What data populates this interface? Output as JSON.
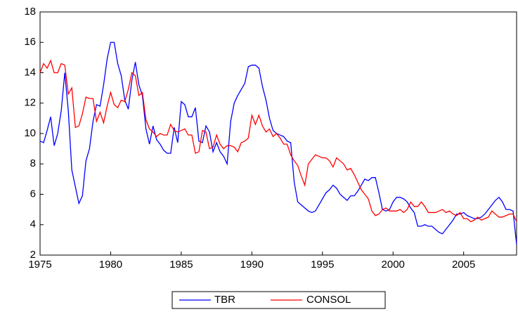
{
  "chart_data": {
    "type": "line",
    "x": [
      1975,
      1975.25,
      1975.5,
      1975.75,
      1976,
      1976.25,
      1976.5,
      1976.75,
      1977,
      1977.25,
      1977.5,
      1977.75,
      1978,
      1978.25,
      1978.5,
      1978.75,
      1979,
      1979.25,
      1979.5,
      1979.75,
      1980,
      1980.25,
      1980.5,
      1980.75,
      1981,
      1981.25,
      1981.5,
      1981.75,
      1982,
      1982.25,
      1982.5,
      1982.75,
      1983,
      1983.25,
      1983.5,
      1983.75,
      1984,
      1984.25,
      1984.5,
      1984.75,
      1985,
      1985.25,
      1985.5,
      1985.75,
      1986,
      1986.25,
      1986.5,
      1986.75,
      1987,
      1987.25,
      1987.5,
      1987.75,
      1988,
      1988.25,
      1988.5,
      1988.75,
      1989,
      1989.25,
      1989.5,
      1989.75,
      1990,
      1990.25,
      1990.5,
      1990.75,
      1991,
      1991.25,
      1991.5,
      1991.75,
      1992,
      1992.25,
      1992.5,
      1992.75,
      1993,
      1993.25,
      1993.5,
      1993.75,
      1994,
      1994.25,
      1994.5,
      1994.75,
      1995,
      1995.25,
      1995.5,
      1995.75,
      1996,
      1996.25,
      1996.5,
      1996.75,
      1997,
      1997.25,
      1997.5,
      1997.75,
      1998,
      1998.25,
      1998.5,
      1998.75,
      1999,
      1999.25,
      1999.5,
      1999.75,
      2000,
      2000.25,
      2000.5,
      2000.75,
      2001,
      2001.25,
      2001.5,
      2001.75,
      2002,
      2002.25,
      2002.5,
      2002.75,
      2003,
      2003.25,
      2003.5,
      2003.75,
      2004,
      2004.25,
      2004.5,
      2004.75,
      2005,
      2005.25,
      2005.5,
      2005.75,
      2006,
      2006.25,
      2006.5,
      2006.75,
      2007,
      2007.25,
      2007.5,
      2007.75,
      2008,
      2008.25,
      2008.5,
      2008.75
    ],
    "series": [
      {
        "name": "TBR",
        "color": "#0000ff",
        "values": [
          9.5,
          9.4,
          10.2,
          11.1,
          9.2,
          10.0,
          11.5,
          14.0,
          11.5,
          7.6,
          6.5,
          5.4,
          5.9,
          8.2,
          9.0,
          10.8,
          11.9,
          11.8,
          13.2,
          14.9,
          16.0,
          16.0,
          14.6,
          13.8,
          12.2,
          11.6,
          13.5,
          14.7,
          13.2,
          12.5,
          10.3,
          9.3,
          10.5,
          9.6,
          9.3,
          8.9,
          8.7,
          8.7,
          10.4,
          9.4,
          12.1,
          11.9,
          11.1,
          11.1,
          11.7,
          9.5,
          9.4,
          10.5,
          10.1,
          8.8,
          9.4,
          8.8,
          8.5,
          8.0,
          10.8,
          12.0,
          12.5,
          12.9,
          13.3,
          14.4,
          14.5,
          14.5,
          14.3,
          13.1,
          12.2,
          11.0,
          10.2,
          10.0,
          9.9,
          9.8,
          9.5,
          9.4,
          6.8,
          5.5,
          5.3,
          5.1,
          4.9,
          4.8,
          4.9,
          5.3,
          5.7,
          6.1,
          6.3,
          6.6,
          6.4,
          6.0,
          5.8,
          5.6,
          5.9,
          5.9,
          6.2,
          6.6,
          7.0,
          6.9,
          7.1,
          7.1,
          6.1,
          5.0,
          4.9,
          5.0,
          5.5,
          5.8,
          5.8,
          5.7,
          5.5,
          5.1,
          4.8,
          3.9,
          3.9,
          4.0,
          3.9,
          3.9,
          3.7,
          3.5,
          3.4,
          3.7,
          4.0,
          4.3,
          4.7,
          4.7,
          4.8,
          4.6,
          4.5,
          4.4,
          4.4,
          4.5,
          4.7,
          5.0,
          5.3,
          5.6,
          5.8,
          5.5,
          5.0,
          5.0,
          4.9,
          2.7
        ]
      },
      {
        "name": "CONSOL",
        "color": "#ff0000",
        "values": [
          14.0,
          14.6,
          14.3,
          14.8,
          14.0,
          14.0,
          14.6,
          14.5,
          12.6,
          13.0,
          10.4,
          10.5,
          11.3,
          12.4,
          12.3,
          12.3,
          10.8,
          11.4,
          10.7,
          11.8,
          12.7,
          11.9,
          11.7,
          12.2,
          12.1,
          12.9,
          14.0,
          13.8,
          12.5,
          12.7,
          10.9,
          10.3,
          10.1,
          9.8,
          10.0,
          9.9,
          9.9,
          10.6,
          10.2,
          10.1,
          10.2,
          10.3,
          9.9,
          9.9,
          8.7,
          8.8,
          10.2,
          10.1,
          9.0,
          9.1,
          9.9,
          9.3,
          9.0,
          9.2,
          9.2,
          9.1,
          8.8,
          9.4,
          9.5,
          9.7,
          11.2,
          10.6,
          11.2,
          10.5,
          10.1,
          10.3,
          9.8,
          10.0,
          9.7,
          9.3,
          9.3,
          8.6,
          8.2,
          7.9,
          7.2,
          6.6,
          8.0,
          8.3,
          8.6,
          8.5,
          8.4,
          8.4,
          8.2,
          7.8,
          8.4,
          8.2,
          8.0,
          7.6,
          7.7,
          7.3,
          6.8,
          6.3,
          6.0,
          5.7,
          4.9,
          4.6,
          4.7,
          5.0,
          5.1,
          4.9,
          4.9,
          4.9,
          5.0,
          4.8,
          5.0,
          5.5,
          5.2,
          5.2,
          5.5,
          5.2,
          4.8,
          4.8,
          4.8,
          4.9,
          5.0,
          4.8,
          4.9,
          4.7,
          4.6,
          4.8,
          4.4,
          4.4,
          4.2,
          4.3,
          4.5,
          4.3,
          4.4,
          4.5,
          4.9,
          4.7,
          4.5,
          4.5,
          4.6,
          4.7,
          4.7,
          4.2
        ]
      }
    ],
    "xlim": [
      1975,
      2008.75
    ],
    "xticks": [
      1975,
      1980,
      1985,
      1990,
      1995,
      2000,
      2005
    ],
    "ylim": [
      2,
      18
    ],
    "yticks": [
      2,
      4,
      6,
      8,
      10,
      12,
      14,
      16,
      18
    ],
    "grid": false,
    "legend": "bottom"
  }
}
